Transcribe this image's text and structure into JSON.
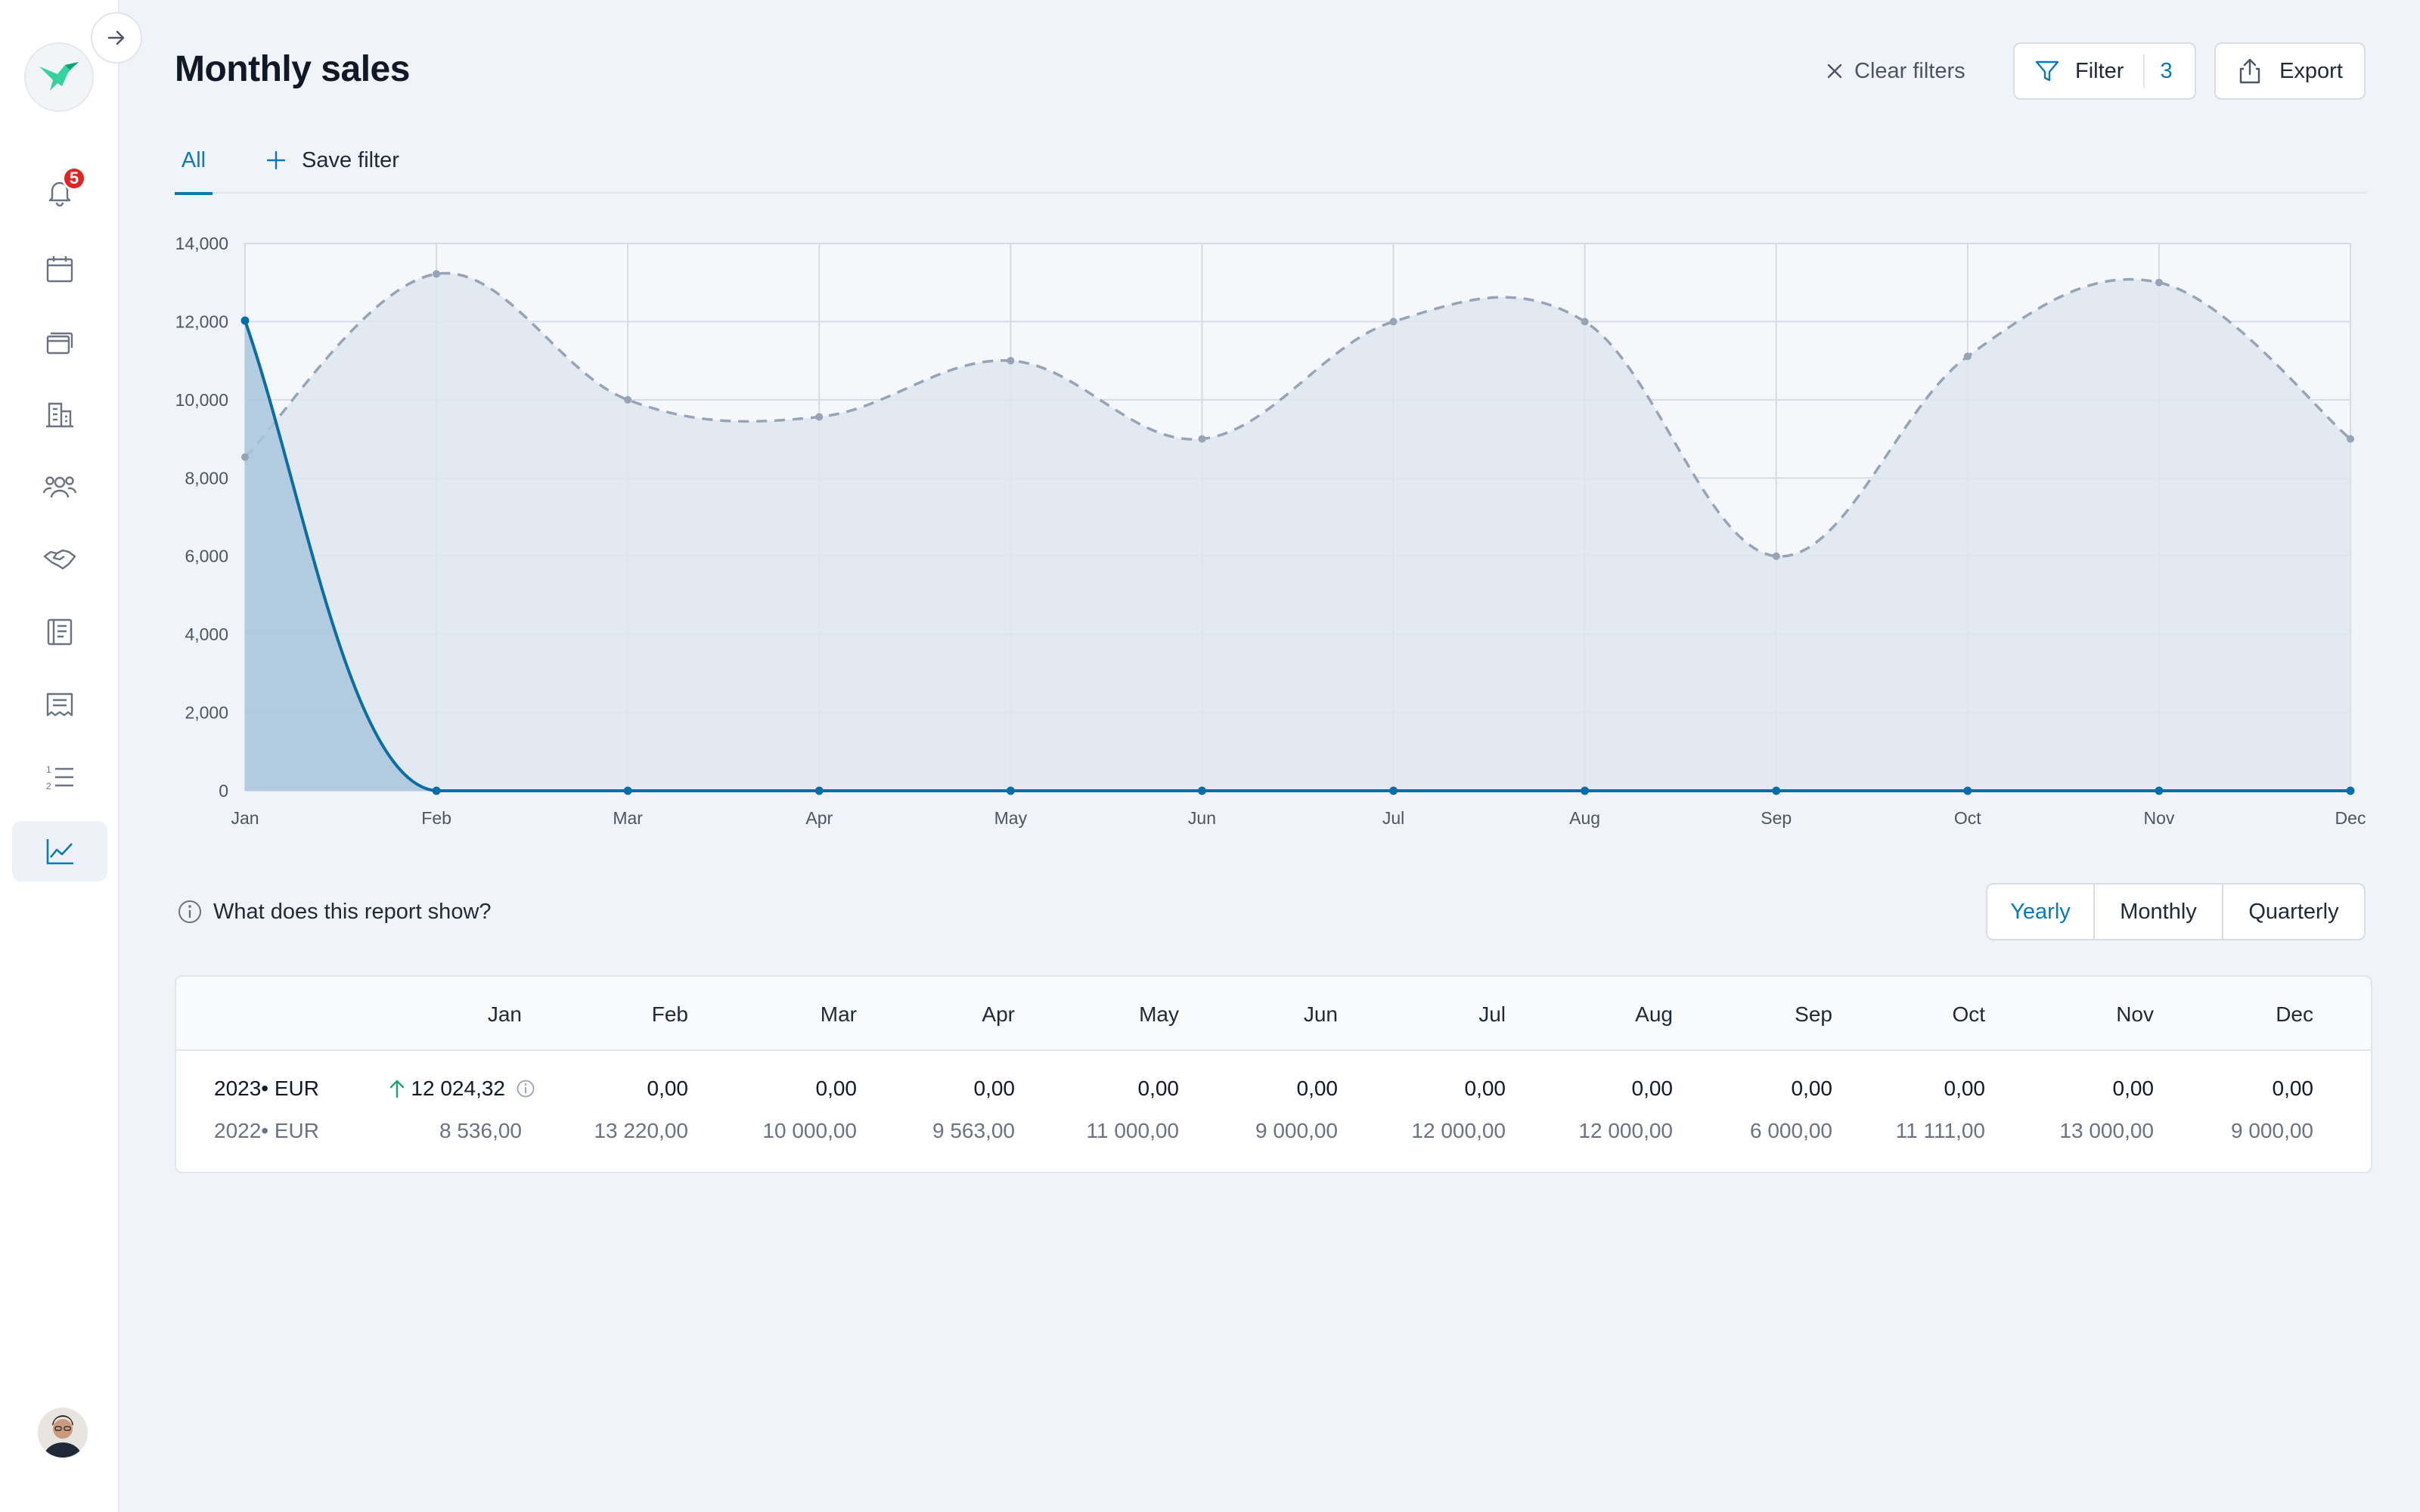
{
  "sidebar": {
    "notification_count": "5",
    "items": [
      {
        "icon": "bell-icon"
      },
      {
        "icon": "calendar-icon"
      },
      {
        "icon": "stack-icon"
      },
      {
        "icon": "building-icon"
      },
      {
        "icon": "people-icon"
      },
      {
        "icon": "handshake-icon"
      },
      {
        "icon": "ledger-icon"
      },
      {
        "icon": "receipt-icon"
      },
      {
        "icon": "numbered-list-icon"
      },
      {
        "icon": "chart-line-icon"
      }
    ]
  },
  "header": {
    "title": "Monthly sales",
    "clear_filters_label": "Clear filters",
    "filter_label": "Filter",
    "filter_count": "3",
    "export_label": "Export"
  },
  "tabs": {
    "all_label": "All",
    "save_filter_label": "Save filter"
  },
  "colors": {
    "accent": "#0b79b8",
    "series_2023_line": "#0b6da8",
    "series_2023_fill": "#a9c6dc",
    "series_2022_line": "#97a3b6",
    "series_2022_fill": "#dfe6ef"
  },
  "chart_data": {
    "type": "area",
    "categories": [
      "Jan",
      "Feb",
      "Mar",
      "Apr",
      "May",
      "Jun",
      "Jul",
      "Aug",
      "Sep",
      "Oct",
      "Nov",
      "Dec"
    ],
    "yticks": [
      "0",
      "2,000",
      "4,000",
      "6,000",
      "8,000",
      "10,000",
      "12,000",
      "14,000"
    ],
    "ylim": [
      0,
      14000
    ],
    "grid": true,
    "series": [
      {
        "values": [
          12024.32,
          0,
          0,
          0,
          0,
          0,
          0,
          0,
          0,
          0,
          0,
          0
        ],
        "style": "solid"
      },
      {
        "values": [
          8536,
          13220,
          10000,
          9563,
          11000,
          9000,
          12000,
          12000,
          6000,
          11111,
          13000,
          9000
        ],
        "style": "dashed"
      }
    ]
  },
  "info": {
    "label": "What does this report show?"
  },
  "period_toggle": {
    "options": [
      "Yearly",
      "Monthly",
      "Quarterly"
    ],
    "selected": "Yearly"
  },
  "table": {
    "months": [
      "Jan",
      "Feb",
      "Mar",
      "Apr",
      "May",
      "Jun",
      "Jul",
      "Aug",
      "Sep",
      "Oct",
      "Nov",
      "Dec"
    ],
    "rows": [
      {
        "label": "2023• EUR",
        "values": [
          "12 024,32",
          "0,00",
          "0,00",
          "0,00",
          "0,00",
          "0,00",
          "0,00",
          "0,00",
          "0,00",
          "0,00",
          "0,00",
          "0,00"
        ]
      },
      {
        "label": "2022• EUR",
        "values": [
          "8 536,00",
          "13 220,00",
          "10 000,00",
          "9 563,00",
          "11 000,00",
          "9 000,00",
          "12 000,00",
          "12 000,00",
          "6 000,00",
          "11 111,00",
          "13 000,00",
          "9 000,00"
        ]
      }
    ]
  }
}
